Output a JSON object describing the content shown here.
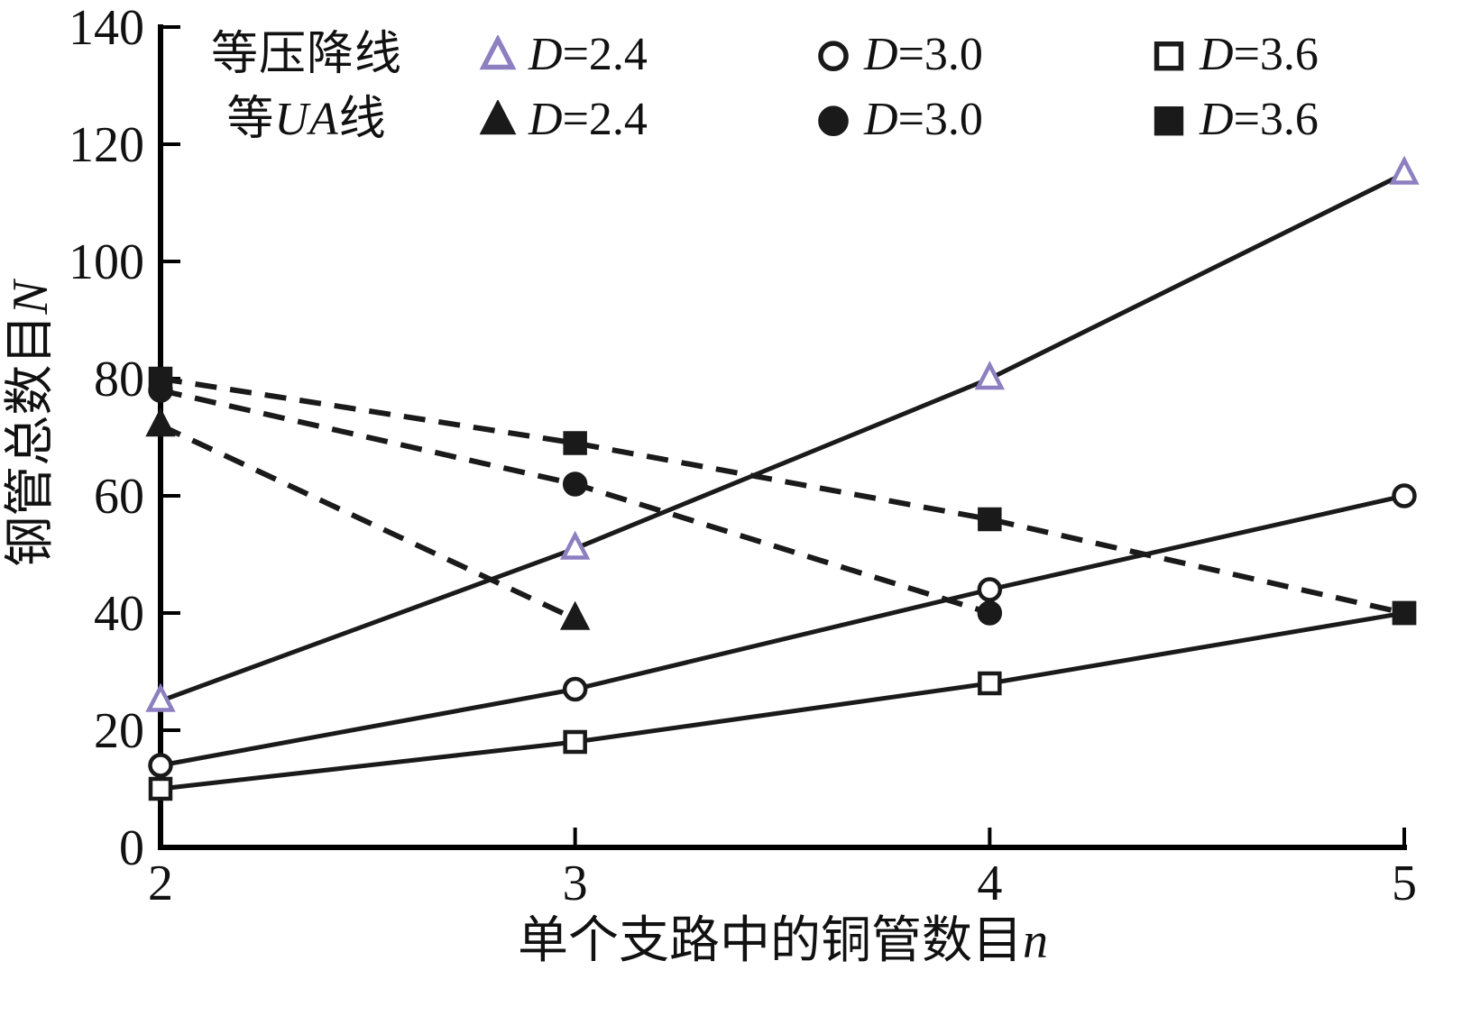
{
  "figure": {
    "background": "#ffffff"
  },
  "chart_data": {
    "type": "line",
    "title": "",
    "xlabel": "单个支路中的铜管数目",
    "xlabel_var": "n",
    "ylabel": "钢管总数目",
    "ylabel_var": "N",
    "xlim": [
      2,
      5
    ],
    "ylim": [
      0,
      140
    ],
    "xticks": [
      2,
      3,
      4,
      5
    ],
    "yticks": [
      0,
      20,
      40,
      60,
      80,
      100,
      120,
      140
    ],
    "grid": false,
    "legend_position": "top-inside",
    "colors": {
      "axis": "#000000",
      "line": "#1a1a1a",
      "open_triangle": "#8d7fc0",
      "background": "#ffffff"
    },
    "groups": [
      {
        "title_pre": "等压降线",
        "title_var": "",
        "title_post": "",
        "style": "solid-open-markers"
      },
      {
        "title_pre": "等",
        "title_var": "UA",
        "title_post": "线",
        "style": "dashed-filled-markers"
      }
    ],
    "series": [
      {
        "group": 0,
        "label": "D=2.4",
        "marker": "triangle-open",
        "marker_color": "#8d7fc0",
        "line": "solid",
        "x": [
          2,
          3,
          4,
          5
        ],
        "values": [
          25,
          51,
          80,
          115
        ]
      },
      {
        "group": 0,
        "label": "D=3.0",
        "marker": "circle-open",
        "marker_color": "#1a1a1a",
        "line": "solid",
        "x": [
          2,
          3,
          4,
          5
        ],
        "values": [
          14,
          27,
          44,
          60
        ]
      },
      {
        "group": 0,
        "label": "D=3.6",
        "marker": "square-open",
        "marker_color": "#1a1a1a",
        "line": "solid",
        "x": [
          2,
          3,
          4,
          5
        ],
        "values": [
          10,
          18,
          28,
          40
        ]
      },
      {
        "group": 1,
        "label": "D=2.4",
        "marker": "triangle-filled",
        "marker_color": "#1a1a1a",
        "line": "dashed",
        "x": [
          2,
          3
        ],
        "values": [
          72,
          39
        ]
      },
      {
        "group": 1,
        "label": "D=3.0",
        "marker": "circle-filled",
        "marker_color": "#1a1a1a",
        "line": "dashed",
        "x": [
          2,
          3,
          4
        ],
        "values": [
          78,
          62,
          40
        ]
      },
      {
        "group": 1,
        "label": "D=3.6",
        "marker": "square-filled",
        "marker_color": "#1a1a1a",
        "line": "dashed",
        "x": [
          2,
          3,
          4,
          5
        ],
        "values": [
          80,
          69,
          56,
          40
        ]
      }
    ]
  }
}
